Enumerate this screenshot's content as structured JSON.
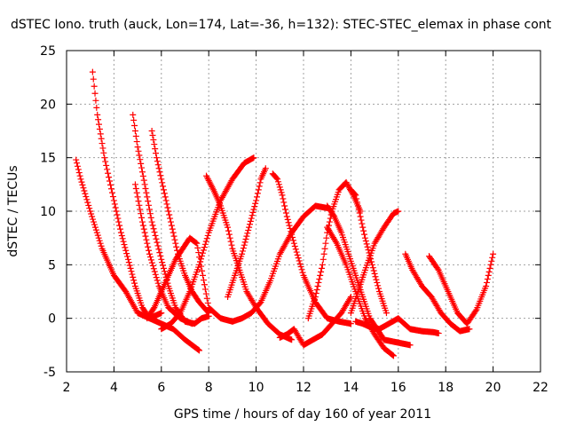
{
  "chart_data": {
    "type": "scatter",
    "title": "dSTEC Iono. truth (auck, Lon=174, Lat=-36, h=132): STEC-STEC_elemax in phase cont",
    "xlabel": "GPS time / hours of day 160 of year 2011",
    "ylabel": "dSTEC  / TECUs",
    "xlim": [
      2,
      22
    ],
    "ylim": [
      -5,
      25
    ],
    "x_ticks": [
      2,
      4,
      6,
      8,
      10,
      12,
      14,
      16,
      18,
      20,
      22
    ],
    "y_ticks": [
      -5,
      0,
      5,
      10,
      15,
      20,
      25
    ],
    "grid": true,
    "marker": "+",
    "color": "#ff0000",
    "series": [
      {
        "x": [
          2.4,
          2.6,
          3.0,
          3.5,
          4.0,
          4.5,
          5.0,
          5.5,
          6.0,
          6.5,
          7.0,
          7.6
        ],
        "y": [
          14.8,
          13.0,
          10.0,
          6.5,
          4.0,
          2.5,
          0.5,
          0.0,
          -0.5,
          -1.0,
          -2.0,
          -3.0
        ]
      },
      {
        "x": [
          3.1,
          3.3,
          3.6,
          4.0,
          4.3,
          4.6,
          4.9,
          5.2,
          5.5,
          6.0
        ],
        "y": [
          23.0,
          19.0,
          15.0,
          11.0,
          8.0,
          5.5,
          3.0,
          1.0,
          0.0,
          0.5
        ]
      },
      {
        "x": [
          5.4,
          5.7,
          6.0,
          6.3,
          6.6,
          6.9,
          7.2,
          7.5,
          8.0,
          8.5,
          9.0
        ],
        "y": [
          0.0,
          1.0,
          2.5,
          4.0,
          5.5,
          6.5,
          7.5,
          7.0,
          1.0,
          0.0,
          -0.3
        ]
      },
      {
        "x": [
          4.8,
          5.0,
          5.3,
          5.6,
          6.0,
          6.3,
          6.6,
          7.0,
          7.4,
          7.7,
          8.0
        ],
        "y": [
          19.0,
          16.0,
          12.5,
          9.0,
          5.5,
          3.0,
          1.0,
          -0.3,
          -0.5,
          0.0,
          0.2
        ]
      },
      {
        "x": [
          4.9,
          5.2,
          5.5,
          5.9,
          6.3,
          6.8,
          7.3
        ],
        "y": [
          12.5,
          9.0,
          6.0,
          3.0,
          1.0,
          0.0,
          -0.5
        ]
      },
      {
        "x": [
          5.6,
          5.8,
          6.1,
          6.4,
          6.7,
          7.0,
          7.3,
          7.6,
          8.0
        ],
        "y": [
          17.5,
          15.0,
          12.0,
          9.0,
          6.0,
          4.0,
          2.5,
          1.5,
          0.5
        ]
      },
      {
        "x": [
          6.0,
          6.4,
          6.8,
          7.2,
          7.6,
          8.0,
          8.5,
          9.0,
          9.5,
          9.9
        ],
        "y": [
          -1.0,
          -0.5,
          0.5,
          2.5,
          5.0,
          8.0,
          11.0,
          13.0,
          14.5,
          15.0
        ]
      },
      {
        "x": [
          7.9,
          8.2,
          8.5,
          8.8,
          9.0,
          9.3,
          9.6,
          10.0,
          10.5,
          11.0,
          11.5
        ],
        "y": [
          13.3,
          12.0,
          10.5,
          8.5,
          6.5,
          4.5,
          2.5,
          1.0,
          -0.5,
          -1.5,
          -2.0
        ]
      },
      {
        "x": [
          8.8,
          9.1,
          9.4,
          9.7,
          10.0,
          10.2,
          10.4
        ],
        "y": [
          2.0,
          4.0,
          6.0,
          8.5,
          11.0,
          13.0,
          14.0
        ]
      },
      {
        "x": [
          9.0,
          9.4,
          9.8,
          10.2,
          10.6,
          11.0,
          11.5,
          12.0,
          12.5,
          13.0
        ],
        "y": [
          -0.3,
          0.0,
          0.5,
          1.5,
          3.5,
          6.0,
          8.0,
          9.5,
          10.5,
          10.3
        ]
      },
      {
        "x": [
          10.7,
          10.9,
          11.1,
          11.3,
          11.6,
          12.0,
          12.5,
          13.0,
          13.5,
          14.0
        ],
        "y": [
          13.5,
          13.0,
          11.5,
          9.5,
          7.0,
          4.0,
          1.5,
          0.0,
          -0.3,
          -0.5
        ]
      },
      {
        "x": [
          11.0,
          11.3,
          11.6,
          12.0,
          12.4,
          12.8,
          13.2,
          13.6,
          14.0
        ],
        "y": [
          -1.8,
          -1.5,
          -1.0,
          -2.5,
          -2.0,
          -1.5,
          -0.5,
          0.5,
          2.0
        ]
      },
      {
        "x": [
          12.2,
          12.5,
          12.8,
          13.0,
          13.2,
          13.5,
          13.8,
          14.1,
          14.4
        ],
        "y": [
          0.0,
          2.0,
          5.0,
          8.0,
          10.0,
          12.0,
          12.7,
          11.5,
          10.0
        ]
      },
      {
        "x": [
          13.0,
          13.3,
          13.6,
          13.9,
          14.2,
          14.5,
          14.8,
          15.1,
          15.4,
          16.5
        ],
        "y": [
          10.5,
          9.5,
          8.0,
          6.0,
          4.0,
          2.0,
          0.0,
          -1.0,
          -2.0,
          -2.5
        ]
      },
      {
        "x": [
          13.0,
          13.4,
          13.8,
          14.2,
          14.6,
          15.0,
          15.4,
          15.8
        ],
        "y": [
          8.5,
          7.0,
          5.0,
          2.5,
          0.0,
          -1.5,
          -2.8,
          -3.5
        ]
      },
      {
        "x": [
          14.0,
          14.3,
          14.6,
          15.0,
          15.4,
          15.8,
          16.0
        ],
        "y": [
          0.5,
          2.5,
          4.5,
          7.0,
          8.5,
          9.8,
          10.0
        ]
      },
      {
        "x": [
          14.0,
          14.2,
          14.4,
          14.6,
          14.9,
          15.2,
          15.5
        ],
        "y": [
          12.0,
          11.5,
          9.5,
          7.5,
          5.0,
          2.5,
          0.5
        ]
      },
      {
        "x": [
          14.2,
          14.5,
          14.8,
          15.2,
          15.6,
          16.0,
          16.5,
          17.0,
          17.5,
          17.7
        ],
        "y": [
          -0.3,
          -0.5,
          -0.8,
          -1.0,
          -0.5,
          0.0,
          -1.0,
          -1.2,
          -1.3,
          -1.4
        ]
      },
      {
        "x": [
          16.3,
          16.6,
          17.0,
          17.4,
          17.8,
          18.2,
          18.6,
          19.0
        ],
        "y": [
          6.0,
          4.5,
          3.0,
          2.0,
          0.5,
          -0.5,
          -1.2,
          -1.0
        ]
      },
      {
        "x": [
          17.3,
          17.7,
          18.1,
          18.5,
          18.9,
          19.3,
          19.7,
          20.0
        ],
        "y": [
          5.8,
          4.5,
          2.5,
          0.5,
          -0.5,
          0.8,
          3.0,
          6.0
        ]
      }
    ]
  }
}
